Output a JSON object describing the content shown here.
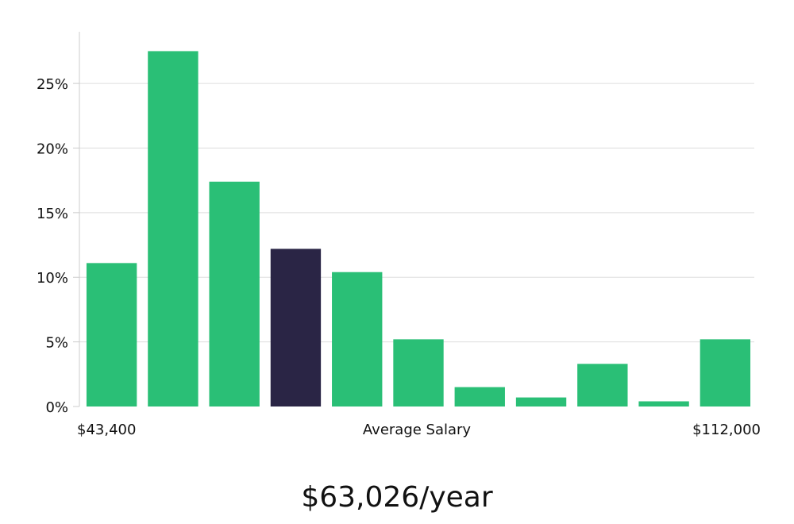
{
  "chart_data": {
    "type": "bar",
    "xlabel": "Average Salary",
    "x_min_label": "$43,400",
    "x_max_label": "$112,000",
    "ylim": [
      0,
      29
    ],
    "y_ticks": [
      0,
      5,
      10,
      15,
      20,
      25
    ],
    "y_tick_labels": [
      "0%",
      "5%",
      "10%",
      "15%",
      "20%",
      "25%"
    ],
    "grid": true,
    "values": [
      11.1,
      27.5,
      17.4,
      12.2,
      10.4,
      5.2,
      1.5,
      0.7,
      3.3,
      0.4,
      5.2
    ],
    "highlight_index": 3,
    "colors": {
      "bar": "#2abf76",
      "highlight": "#2a2545",
      "grid": "#dddddd",
      "axis": "#cccccc"
    }
  },
  "average_salary": "$63,026/year"
}
